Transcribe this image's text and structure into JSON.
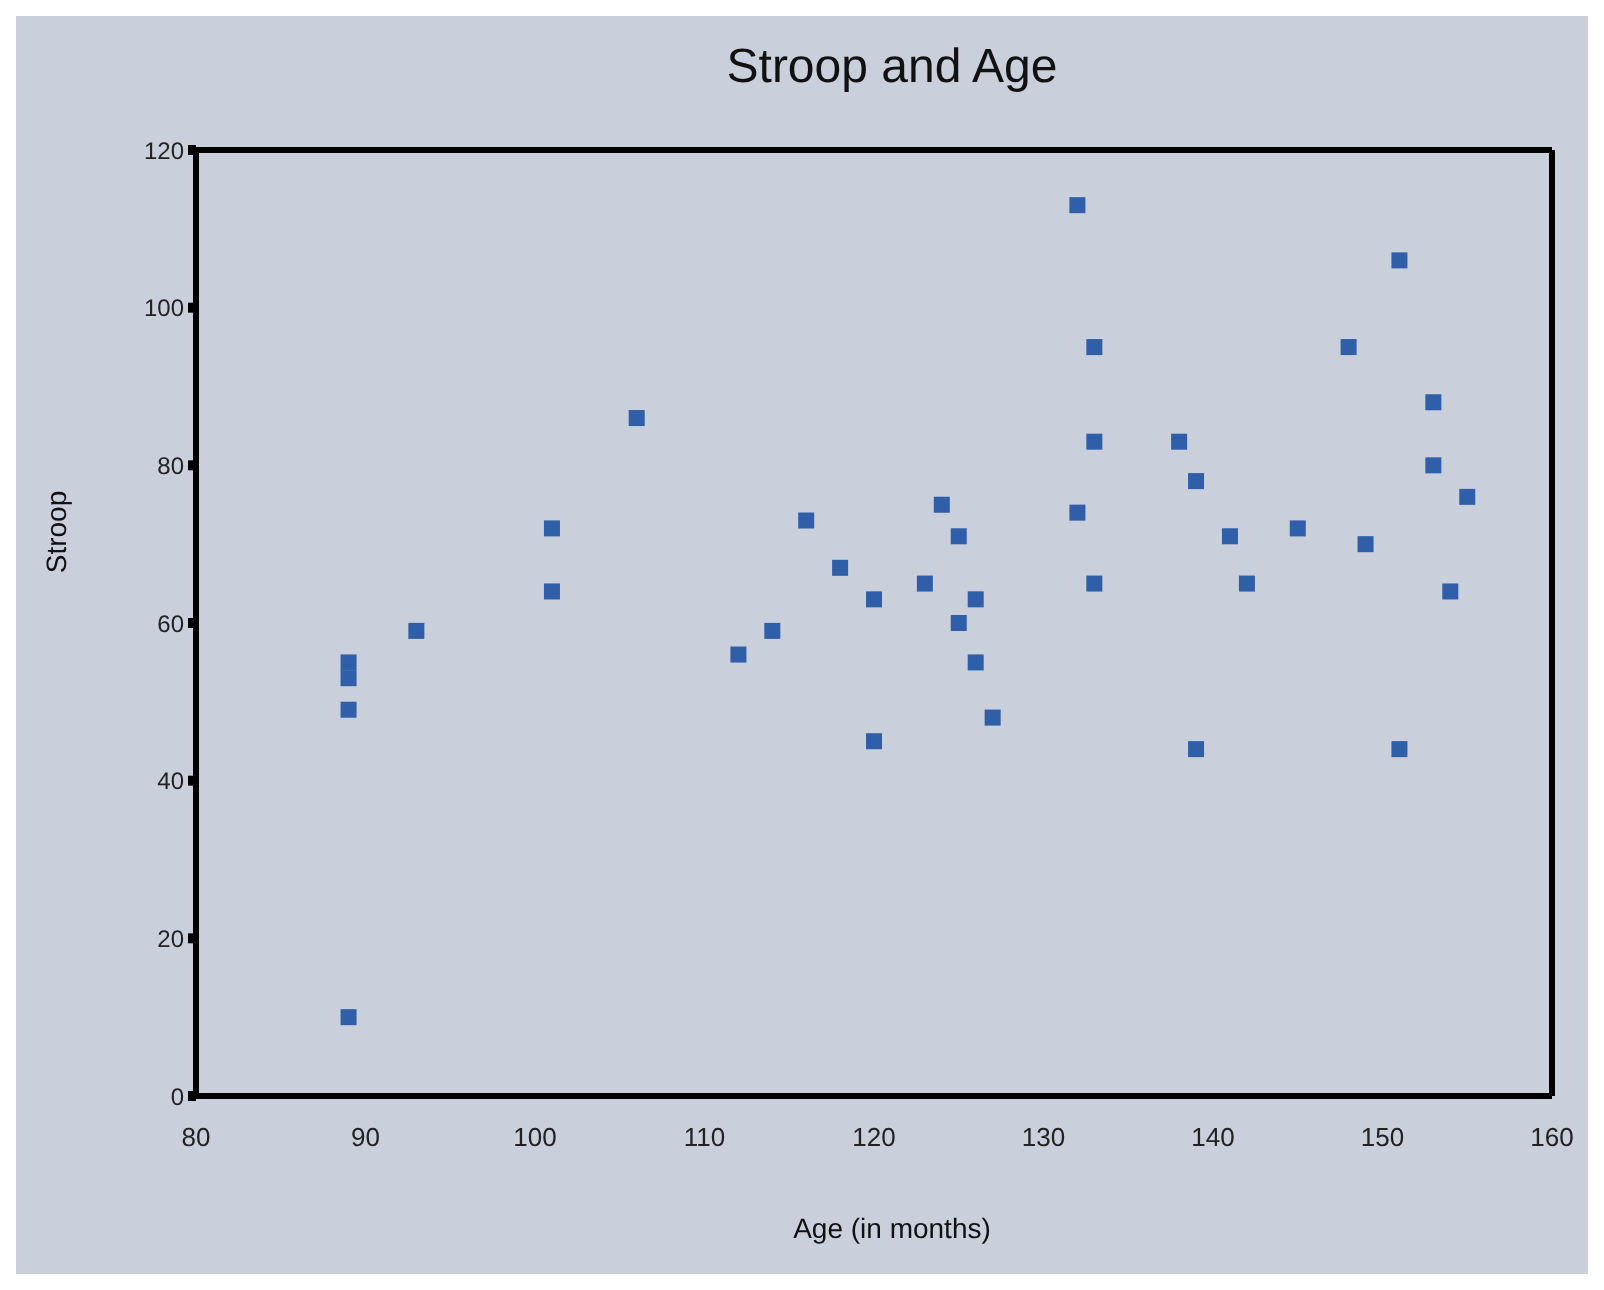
{
  "chart_data": {
    "type": "scatter",
    "title": "Stroop and Age",
    "xlabel": "Age (in months)",
    "ylabel": "Stroop",
    "x": [
      89,
      89,
      89,
      89,
      93,
      101,
      101,
      106,
      112,
      114,
      116,
      118,
      120,
      120,
      123,
      124,
      125,
      125,
      126,
      126,
      127,
      132,
      132,
      133,
      133,
      133,
      138,
      139,
      139,
      141,
      142,
      145,
      148,
      149,
      151,
      151,
      153,
      153,
      154,
      155
    ],
    "series": [
      {
        "color": "#2f5fa8",
        "values": [
          55,
          53,
          49,
          10,
          59,
          72,
          64,
          86,
          56,
          59,
          73,
          67,
          63,
          45,
          65,
          75,
          71,
          60,
          63,
          55,
          48,
          74,
          113,
          95,
          83,
          65,
          83,
          78,
          44,
          71,
          65,
          72,
          95,
          70,
          106,
          44,
          88,
          80,
          64,
          76
        ]
      }
    ],
    "xlim": [
      80,
      160
    ],
    "xticks": [
      80,
      90,
      100,
      110,
      120,
      130,
      140,
      150,
      160
    ],
    "ylim": [
      0,
      120
    ],
    "yticks": [
      0,
      20,
      40,
      60,
      80,
      100,
      120
    ],
    "legend": false,
    "marker": "square"
  }
}
